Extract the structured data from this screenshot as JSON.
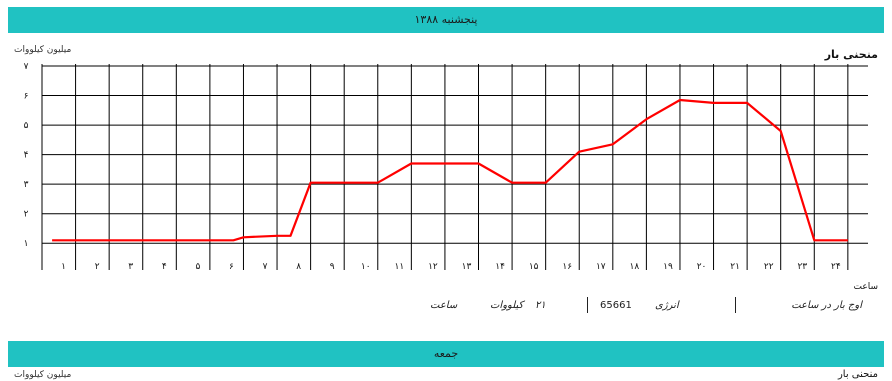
{
  "top_band_text": "پنجشنبه  ۱۳۸۸",
  "bottom_band_text": "جمعه",
  "unit_label_top": "میلیون   کیلووات",
  "unit_label_bottom": "میلیون   کیلووات",
  "chart_title": "منحنی بار",
  "chart_title_bottom": "منحنی بار",
  "x_axis_label": "ساعت",
  "meta": {
    "peak_label": "اوج بار در ساعت",
    "peak_value": "",
    "energy_label": "انرژی",
    "energy_value": "65661",
    "power_label": "کیلووات",
    "power_value": "۲۱",
    "hour_label": "ساعت"
  },
  "colors": {
    "band": "#20c2c2",
    "series": "#ff0000",
    "grid": "#000000"
  },
  "chart_data": {
    "type": "line",
    "title": "منحنی بار",
    "xlabel": "ساعت",
    "ylabel": "میلیون کیلووات",
    "ylim": [
      0.5,
      7
    ],
    "yticks": [
      1,
      2,
      3,
      4,
      5,
      6,
      7
    ],
    "ytick_labels": [
      "۱",
      "۲",
      "۳",
      "۴",
      "۵",
      "۶",
      "۷"
    ],
    "grid": true,
    "x": [
      1,
      2,
      3,
      4,
      5,
      6,
      7,
      8,
      9,
      10,
      11,
      12,
      13,
      14,
      15,
      16,
      17,
      18,
      19,
      20,
      21,
      22,
      23,
      24
    ],
    "xtick_labels": [
      "۱",
      "۲",
      "۳",
      "۴",
      "۵",
      "۶",
      "۷",
      "۸",
      "۹",
      "۱۰",
      "۱۱",
      "۱۲",
      "۱۳",
      "۱۴",
      "۱۵",
      "۱۶",
      "۱۷",
      "۱۸",
      "۱۹",
      "۲۰",
      "۲۱",
      "۲۲",
      "۲۳",
      "۲۴"
    ],
    "series": [
      {
        "points": [
          [
            0.3,
            1.1
          ],
          [
            1,
            1.1
          ],
          [
            2,
            1.1
          ],
          [
            3,
            1.1
          ],
          [
            4,
            1.1
          ],
          [
            5,
            1.1
          ],
          [
            5.7,
            1.1
          ],
          [
            6,
            1.2
          ],
          [
            7,
            1.25
          ],
          [
            7.4,
            1.25
          ],
          [
            8,
            3.05
          ],
          [
            9,
            3.05
          ],
          [
            10,
            3.05
          ],
          [
            11,
            3.7
          ],
          [
            12,
            3.7
          ],
          [
            13,
            3.7
          ],
          [
            14,
            3.05
          ],
          [
            15,
            3.05
          ],
          [
            16,
            4.1
          ],
          [
            17,
            4.35
          ],
          [
            18,
            5.2
          ],
          [
            19,
            5.85
          ],
          [
            20,
            5.75
          ],
          [
            21,
            5.75
          ],
          [
            22,
            4.8
          ],
          [
            23,
            1.1
          ],
          [
            24,
            1.1
          ]
        ]
      }
    ]
  }
}
